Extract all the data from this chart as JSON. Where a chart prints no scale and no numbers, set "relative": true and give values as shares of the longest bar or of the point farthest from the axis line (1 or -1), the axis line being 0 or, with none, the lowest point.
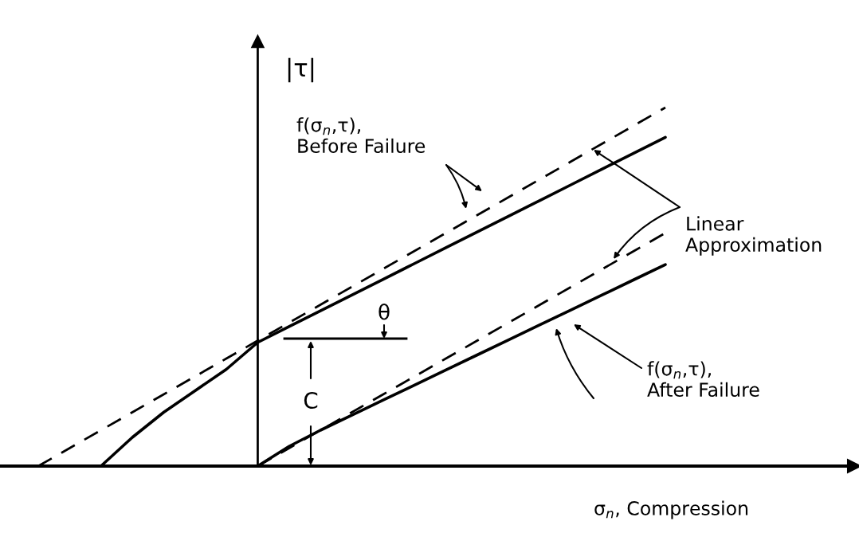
{
  "chart_data": {
    "type": "line",
    "relative": true,
    "xlabel": "σ$_{n}$, Compression",
    "ylabel": "|τ|",
    "categories": [
      null,
      null,
      null,
      null,
      null,
      null,
      null,
      null,
      null,
      null,
      null,
      null,
      null,
      null,
      null,
      null,
      null,
      null,
      null,
      null,
      null
    ],
    "series": [
      {
        "color": "#000000",
        "line_style": "dashed",
        "values": [
          0,
          0.05,
          0.1,
          0.15,
          0.2,
          0.25,
          0.3,
          0.35,
          0.4,
          0.45,
          0.5,
          0.55,
          0.6,
          0.65,
          0.7,
          0.75,
          0.8,
          0.85,
          0.9,
          0.95,
          1.0
        ]
      },
      {
        "color": "#000000",
        "line_style": "solid",
        "values": [
          null,
          null,
          0,
          0.08,
          0.15,
          0.21,
          0.27,
          0.345,
          0.389,
          0.433,
          0.477,
          0.521,
          0.565,
          0.609,
          0.653,
          0.697,
          0.741,
          0.785,
          0.829,
          0.873,
          0.917
        ]
      },
      {
        "color": "#000000",
        "line_style": "dashed",
        "values": [
          null,
          null,
          null,
          null,
          null,
          null,
          null,
          0,
          0.05,
          0.1,
          0.15,
          0.2,
          0.25,
          0.3,
          0.35,
          0.4,
          0.45,
          0.5,
          0.55,
          0.6,
          0.65
        ]
      },
      {
        "color": "#000000",
        "line_style": "solid",
        "values": [
          null,
          null,
          null,
          null,
          null,
          null,
          null,
          0,
          0.055,
          0.1,
          0.142,
          0.184,
          0.226,
          0.268,
          0.31,
          0.352,
          0.394,
          0.436,
          0.478,
          0.52,
          0.562
        ]
      }
    ],
    "annotations": [
      "f(σ$_{n}$,τ),\nBefore Failure",
      "Linear\nApproximation",
      "f(σ$_{n}$,τ),\nAfter Failure",
      "θ",
      "C"
    ]
  }
}
